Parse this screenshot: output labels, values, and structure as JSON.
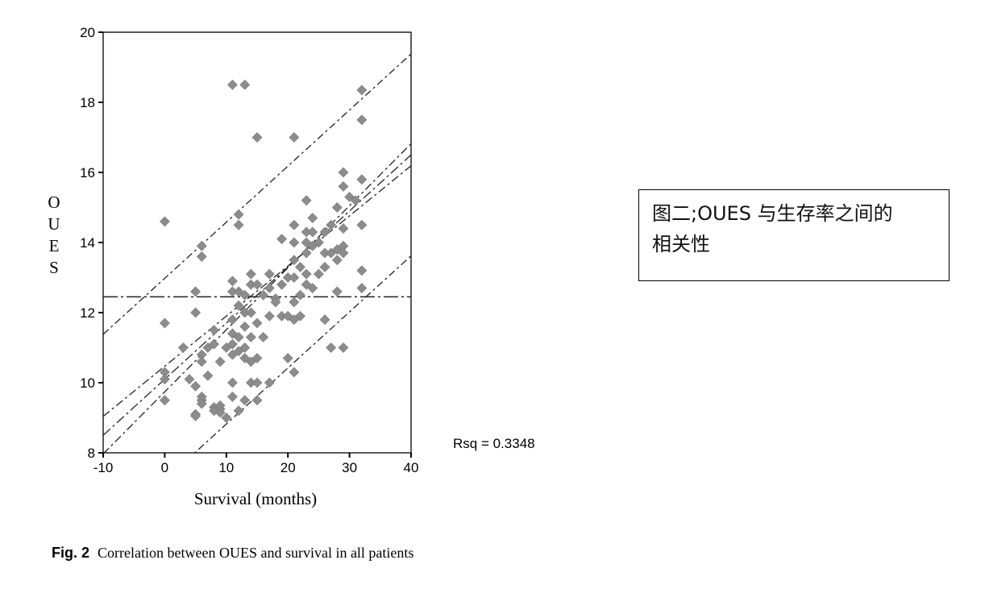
{
  "annotation_box": {
    "line1": "图二;OUES  与生存率之间的",
    "line2": "相关性"
  },
  "caption": {
    "label": "Fig. 2",
    "text": "Correlation between OUES and survival in all patients"
  },
  "chart_data": {
    "type": "scatter",
    "xlabel": "Survival (months)",
    "ylabel": "OUES",
    "xlim": [
      -10,
      40
    ],
    "ylim": [
      8,
      20
    ],
    "x_ticks": [
      -10,
      0,
      10,
      20,
      30,
      40
    ],
    "y_ticks": [
      8,
      10,
      12,
      14,
      16,
      18,
      20
    ],
    "grid": false,
    "annotation": "Rsq = 0.3348",
    "mean_line": {
      "y": 12.45
    },
    "fit_line": {
      "slope": 0.16,
      "intercept": 10.1
    },
    "confidence_band": {
      "upper_intercept": 10.47,
      "upper_slope": 0.143,
      "lower_intercept": 9.74,
      "lower_slope": 0.177
    },
    "prediction_band": {
      "upper_intercept": 12.98,
      "upper_slope": 0.16,
      "lower_intercept": 7.22,
      "lower_slope": 0.16
    },
    "points": [
      [
        0,
        14.6
      ],
      [
        0,
        11.7
      ],
      [
        0,
        10.3
      ],
      [
        0,
        10.1
      ],
      [
        0,
        9.5
      ],
      [
        3,
        11.0
      ],
      [
        4,
        10.1
      ],
      [
        5,
        12.6
      ],
      [
        5,
        12.0
      ],
      [
        5,
        9.9
      ],
      [
        5,
        9.1
      ],
      [
        5,
        9.05
      ],
      [
        6,
        13.9
      ],
      [
        6,
        13.6
      ],
      [
        6,
        10.8
      ],
      [
        6,
        10.6
      ],
      [
        6,
        9.6
      ],
      [
        6,
        9.5
      ],
      [
        6,
        9.4
      ],
      [
        7,
        11.0
      ],
      [
        7,
        10.2
      ],
      [
        8,
        11.5
      ],
      [
        8,
        11.1
      ],
      [
        8,
        9.3
      ],
      [
        8,
        9.2
      ],
      [
        9,
        9.35
      ],
      [
        9,
        9.25
      ],
      [
        9,
        9.15
      ],
      [
        9,
        10.6
      ],
      [
        10,
        9.0
      ],
      [
        10,
        11.0
      ],
      [
        11,
        18.5
      ],
      [
        11,
        12.9
      ],
      [
        11,
        12.6
      ],
      [
        11,
        11.8
      ],
      [
        11,
        11.4
      ],
      [
        11,
        11.1
      ],
      [
        11,
        10.8
      ],
      [
        11,
        10.0
      ],
      [
        11,
        9.6
      ],
      [
        12,
        14.8
      ],
      [
        12,
        14.5
      ],
      [
        12,
        12.6
      ],
      [
        12,
        12.2
      ],
      [
        12,
        11.3
      ],
      [
        12,
        10.9
      ],
      [
        12,
        9.2
      ],
      [
        13,
        18.5
      ],
      [
        13,
        12.5
      ],
      [
        13,
        12.0
      ],
      [
        13,
        11.6
      ],
      [
        13,
        11.0
      ],
      [
        13,
        10.7
      ],
      [
        13,
        9.5
      ],
      [
        14,
        13.1
      ],
      [
        14,
        12.8
      ],
      [
        14,
        12.0
      ],
      [
        14,
        11.3
      ],
      [
        14,
        10.6
      ],
      [
        14,
        10.0
      ],
      [
        15,
        17.0
      ],
      [
        15,
        12.8
      ],
      [
        15,
        11.7
      ],
      [
        15,
        10.7
      ],
      [
        15,
        10.0
      ],
      [
        15,
        9.5
      ],
      [
        16,
        12.5
      ],
      [
        16,
        11.3
      ],
      [
        17,
        13.1
      ],
      [
        17,
        12.7
      ],
      [
        17,
        11.9
      ],
      [
        17,
        10.0
      ],
      [
        18,
        12.4
      ],
      [
        18,
        12.3
      ],
      [
        19,
        14.1
      ],
      [
        19,
        12.8
      ],
      [
        19,
        11.9
      ],
      [
        20,
        13.0
      ],
      [
        20,
        10.7
      ],
      [
        20,
        11.9
      ],
      [
        21,
        17.0
      ],
      [
        21,
        14.5
      ],
      [
        21,
        14.0
      ],
      [
        21,
        13.5
      ],
      [
        21,
        13.0
      ],
      [
        21,
        12.3
      ],
      [
        21,
        11.8
      ],
      [
        21,
        10.3
      ],
      [
        22,
        13.3
      ],
      [
        22,
        12.5
      ],
      [
        22,
        11.9
      ],
      [
        23,
        15.2
      ],
      [
        23,
        14.3
      ],
      [
        23,
        14.0
      ],
      [
        23,
        13.7
      ],
      [
        23,
        13.1
      ],
      [
        23,
        12.8
      ],
      [
        24,
        14.7
      ],
      [
        24,
        14.3
      ],
      [
        24,
        13.9
      ],
      [
        24,
        12.7
      ],
      [
        25,
        14.0
      ],
      [
        25,
        13.1
      ],
      [
        26,
        14.3
      ],
      [
        26,
        13.7
      ],
      [
        26,
        13.3
      ],
      [
        26,
        11.8
      ],
      [
        27,
        14.5
      ],
      [
        27,
        13.7
      ],
      [
        27,
        11.0
      ],
      [
        28,
        15.0
      ],
      [
        28,
        13.8
      ],
      [
        28,
        13.5
      ],
      [
        28,
        12.6
      ],
      [
        29,
        16.0
      ],
      [
        29,
        15.6
      ],
      [
        29,
        14.4
      ],
      [
        29,
        13.9
      ],
      [
        29,
        13.7
      ],
      [
        29,
        11.0
      ],
      [
        30,
        15.3
      ],
      [
        31,
        15.2
      ],
      [
        32,
        18.35
      ],
      [
        32,
        17.5
      ],
      [
        32,
        15.8
      ],
      [
        32,
        14.5
      ],
      [
        32,
        13.2
      ],
      [
        32,
        12.7
      ]
    ]
  }
}
